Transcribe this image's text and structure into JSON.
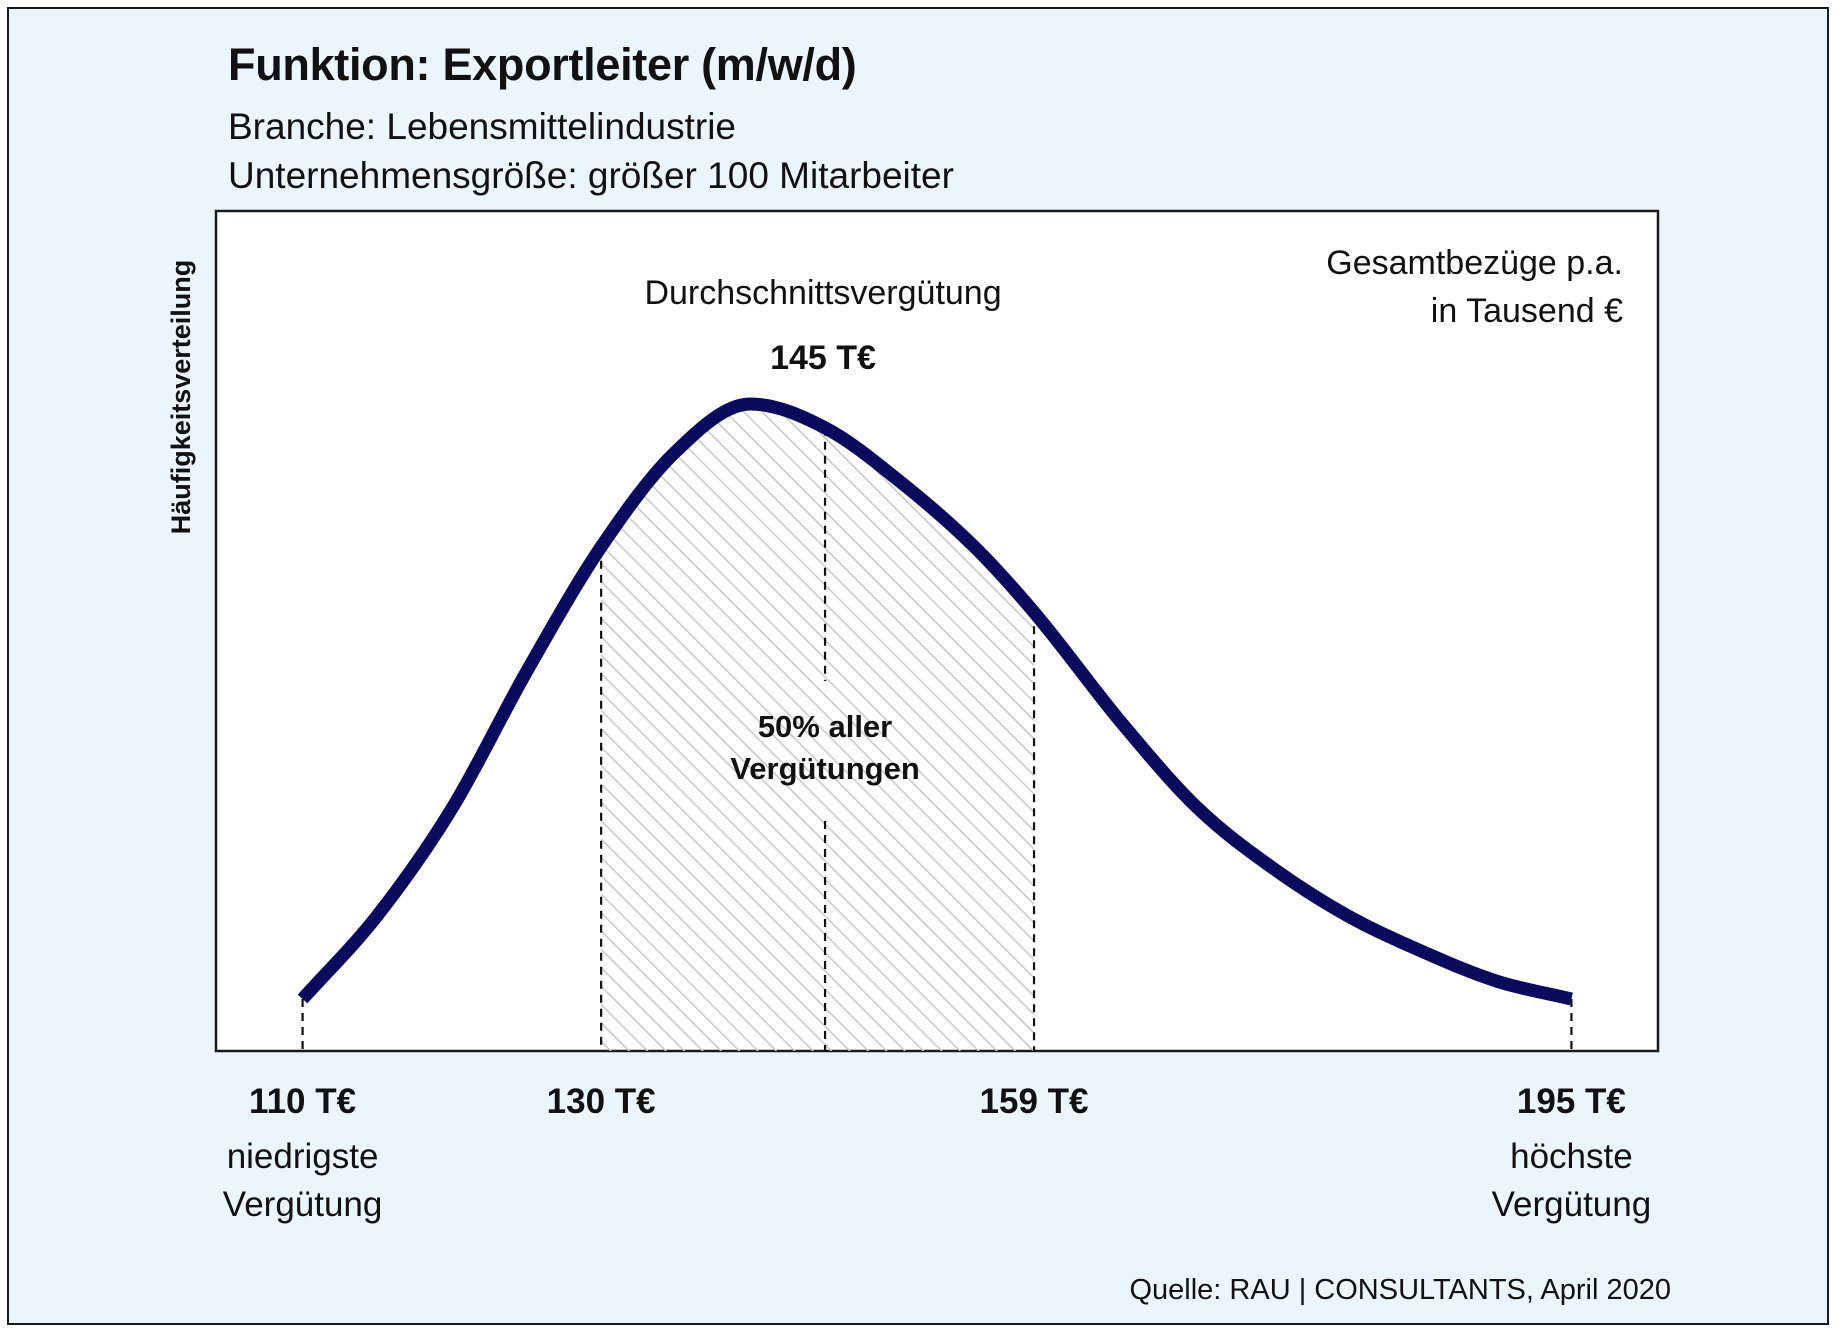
{
  "header": {
    "title": "Funktion: Exportleiter (m/w/d)",
    "subtitle_lines": [
      "Branche: Lebensmittelindustrie",
      "Unternehmensgröße: größer 100 Mitarbeiter"
    ]
  },
  "colors": {
    "background": "#ebf5fe",
    "curve": "#0b0b5e",
    "plot_background": "#ffffff",
    "frame": "#1a1a1a",
    "hatch": "#c8c8c8"
  },
  "chart_data": {
    "type": "area",
    "title": "",
    "ylabel": "Häufigkeitsverteilung",
    "xlabel": "",
    "unit_note_lines": [
      "Gesamtbezüge p.a.",
      "in Tausend €"
    ],
    "xlim": [
      104.2,
      200.8
    ],
    "grid": false,
    "legend": "none",
    "curve": {
      "x": [
        110,
        115,
        120,
        125,
        130,
        135,
        140,
        145,
        150,
        155,
        159,
        165,
        170,
        175,
        180,
        185,
        190,
        195
      ],
      "y": [
        0.0,
        0.14,
        0.32,
        0.55,
        0.76,
        0.92,
        1.0,
        0.96,
        0.87,
        0.76,
        0.65,
        0.46,
        0.32,
        0.22,
        0.14,
        0.08,
        0.03,
        0.0
      ]
    },
    "markers": [
      {
        "x": 110,
        "value_label": "110 T€",
        "caption_lines": [
          "niedrigste",
          "Vergütung"
        ]
      },
      {
        "x": 130,
        "value_label": "130 T€",
        "caption_lines": []
      },
      {
        "x": 159,
        "value_label": "159 T€",
        "caption_lines": []
      },
      {
        "x": 195,
        "value_label": "195 T€",
        "caption_lines": [
          "höchste",
          "Vergütung"
        ]
      }
    ],
    "average": {
      "x": 145,
      "label": "Durchschnittsvergütung",
      "value_label": "145 T€"
    },
    "middle_band": {
      "x_from": 130,
      "x_to": 159,
      "label_lines": [
        "50% aller",
        "Vergütungen"
      ]
    },
    "source": "Quelle: RAU | CONSULTANTS, April 2020"
  }
}
